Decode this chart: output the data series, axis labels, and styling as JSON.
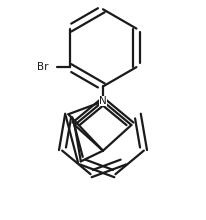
{
  "bg_color": "#ffffff",
  "line_color": "#1a1a1a",
  "line_width": 1.6,
  "text_color": "#1a1a1a",
  "N_label": "N",
  "Br_label": "Br",
  "figsize": [
    2.06,
    2.2
  ],
  "dpi": 100
}
